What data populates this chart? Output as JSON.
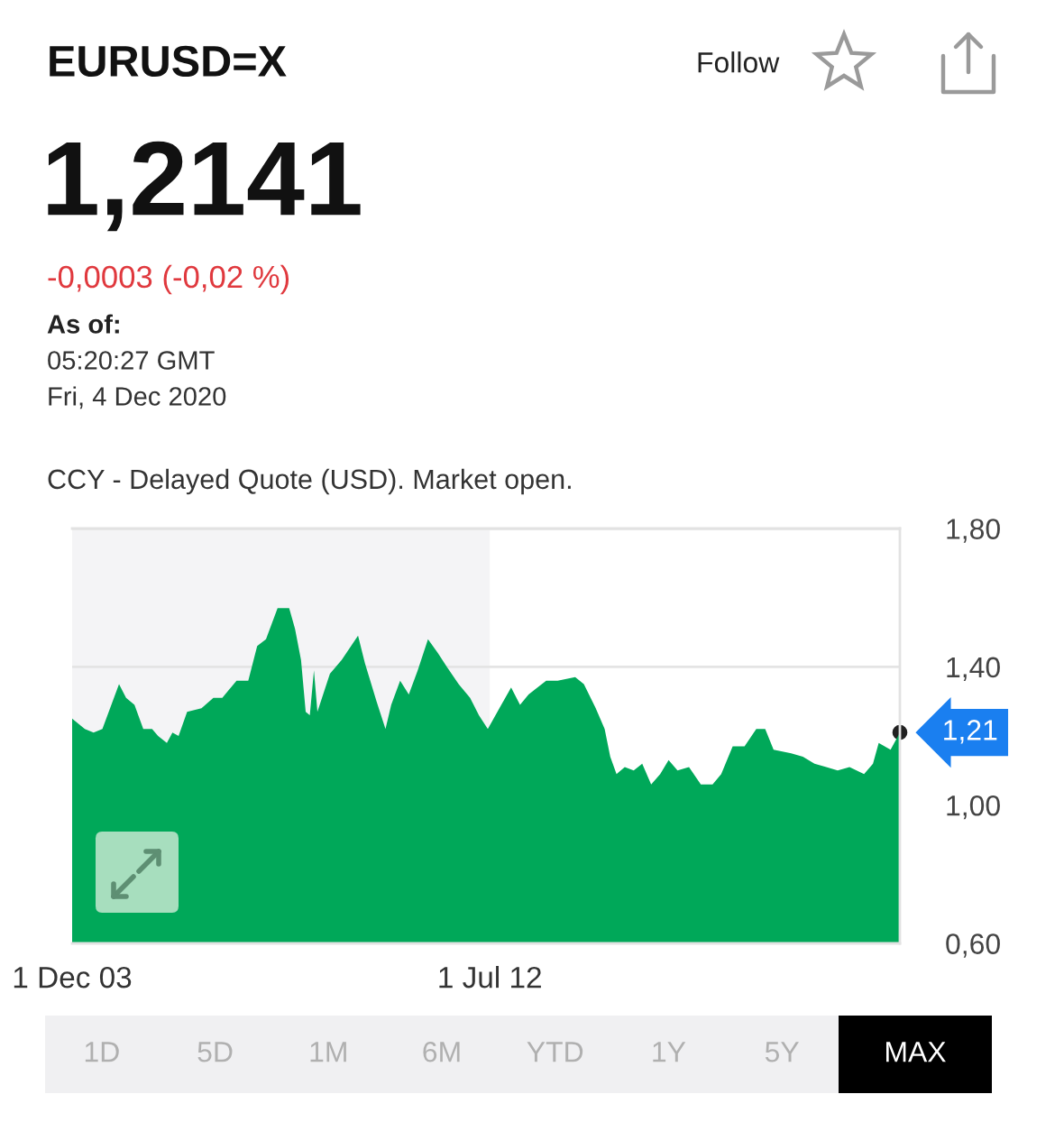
{
  "chart_data": {
    "type": "area",
    "title": "EURUSD=X",
    "subtitle": "CCY - Delayed Quote (USD). Market open.",
    "x": [
      "2003-12-01",
      "2004-03-05",
      "2004-05-10",
      "2004-07-15",
      "2004-11-17",
      "2005-01-09",
      "2005-03-13",
      "2005-05-18",
      "2005-07-23",
      "2005-09-06",
      "2005-11-11",
      "2005-12-23",
      "2006-02-07",
      "2006-04-12",
      "2006-07-29",
      "2006-10-26",
      "2007-01-01",
      "2007-04-18",
      "2007-07-15",
      "2007-09-20",
      "2007-11-25",
      "2008-02-20",
      "2008-05-17",
      "2008-06-30",
      "2008-08-14",
      "2008-09-18",
      "2008-10-19",
      "2008-11-19",
      "2008-12-15",
      "2009-03-19",
      "2009-06-15",
      "2009-10-16",
      "2009-12-07",
      "2010-03-04",
      "2010-05-10",
      "2010-06-22",
      "2010-08-28",
      "2010-11-01",
      "2011-01-07",
      "2011-03-25",
      "2011-06-07",
      "2011-08-13",
      "2011-11-10",
      "2012-02-04",
      "2012-04-10",
      "2012-06-16",
      "2012-09-11",
      "2012-12-08",
      "2013-02-13",
      "2013-04-18",
      "2013-08-28",
      "2013-11-22",
      "2014-04-03",
      "2014-06-07",
      "2014-09-04",
      "2014-11-10",
      "2014-12-22",
      "2015-02-07",
      "2015-04-10",
      "2015-06-16",
      "2015-08-19",
      "2015-10-25",
      "2016-01-01",
      "2016-03-04",
      "2016-05-10",
      "2016-08-04",
      "2016-11-01",
      "2017-01-28",
      "2017-04-03",
      "2017-06-28",
      "2017-09-25",
      "2017-12-22",
      "2018-02-27",
      "2018-05-01",
      "2018-09-10",
      "2018-12-07",
      "2019-03-04",
      "2019-06-01",
      "2019-08-25",
      "2019-11-22",
      "2020-03-10",
      "2020-05-16",
      "2020-06-28",
      "2020-09-25",
      "2020-12-04"
    ],
    "series": [
      {
        "color": "#00a859",
        "values": [
          1.25,
          1.22,
          1.21,
          1.22,
          1.35,
          1.31,
          1.29,
          1.22,
          1.22,
          1.2,
          1.18,
          1.21,
          1.2,
          1.27,
          1.28,
          1.31,
          1.31,
          1.36,
          1.36,
          1.46,
          1.48,
          1.57,
          1.57,
          1.51,
          1.42,
          1.27,
          1.26,
          1.39,
          1.27,
          1.38,
          1.42,
          1.49,
          1.41,
          1.3,
          1.22,
          1.29,
          1.36,
          1.32,
          1.39,
          1.48,
          1.44,
          1.4,
          1.35,
          1.31,
          1.26,
          1.22,
          1.28,
          1.34,
          1.29,
          1.32,
          1.36,
          1.36,
          1.37,
          1.35,
          1.28,
          1.22,
          1.14,
          1.09,
          1.11,
          1.1,
          1.12,
          1.06,
          1.09,
          1.13,
          1.1,
          1.11,
          1.06,
          1.06,
          1.09,
          1.17,
          1.17,
          1.22,
          1.22,
          1.16,
          1.15,
          1.14,
          1.12,
          1.11,
          1.1,
          1.11,
          1.09,
          1.12,
          1.18,
          1.16,
          1.21
        ]
      }
    ],
    "xlim": [
      "2003-12-01",
      "2020-12-04"
    ],
    "xticks": [
      {
        "value": "2003-12-01",
        "label": "1 Dec 03"
      },
      {
        "value": "2012-07-01",
        "label": "1 Jul 12"
      }
    ],
    "ylim": [
      0.6,
      1.8
    ],
    "yticks": [
      {
        "value": 0.6,
        "label": "0,60"
      },
      {
        "value": 1.0,
        "label": "1,00"
      },
      {
        "value": 1.4,
        "label": "1,40"
      },
      {
        "value": 1.8,
        "label": "1,80"
      }
    ],
    "grid": "y",
    "bands": [
      {
        "axis": "x",
        "from": "2003-12-01",
        "to": "2012-07-01",
        "color": "#f4f4f6"
      }
    ],
    "annotations": [
      "Follow",
      "1,2141",
      "-0,0003 (-0,02 %)",
      "As of:",
      "05:20:27 GMT",
      "Fri, 4 Dec 2020",
      "1D",
      "5D",
      "1M",
      "6M",
      "YTD",
      "1Y",
      "5Y",
      "MAX",
      {
        "text": "1,21",
        "x": "2020-12-04",
        "y": 1.21
      }
    ]
  }
}
